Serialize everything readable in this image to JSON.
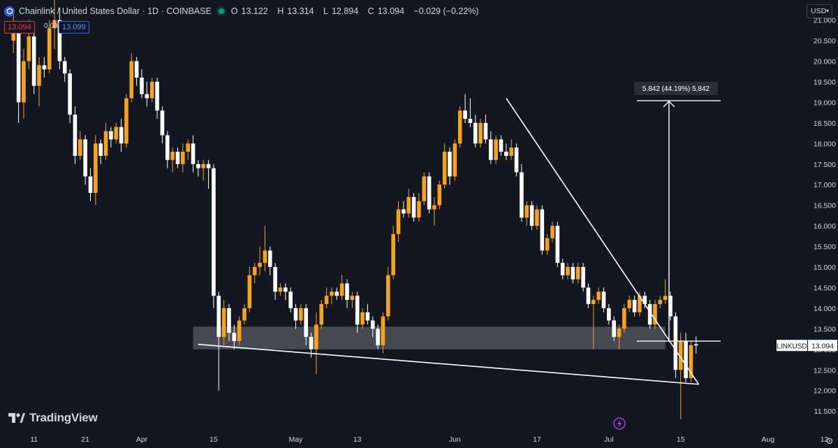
{
  "header": {
    "symbol": "Chainlink / United States Dollar · 1D · COINBASE",
    "o_label": "O",
    "o": "13.122",
    "h_label": "H",
    "h": "13.314",
    "l_label": "L",
    "l": "12.894",
    "c_label": "C",
    "c": "13.094",
    "change": "−0.029 (−0.22%)"
  },
  "trade": {
    "sell": "13.094",
    "spread": "0.005",
    "buy": "13.099"
  },
  "currency": "USD",
  "brand": "TradingView",
  "colors": {
    "bg": "#131722",
    "up": "#f7a21b",
    "down": "#ffffff",
    "text": "#d1d4dc"
  },
  "chart_data": {
    "type": "candlestick",
    "symbol": "LINKUSD",
    "last_price": 13.094,
    "y_ticks": [
      11.5,
      12.0,
      12.5,
      13.0,
      13.5,
      14.0,
      14.5,
      15.0,
      15.5,
      16.0,
      16.5,
      17.0,
      17.5,
      18.0,
      18.5,
      19.0,
      19.5,
      20.0,
      20.5,
      21.0
    ],
    "y_tick_labels": [
      "11.500",
      "12.000",
      "12.500",
      "13.000",
      "13.500",
      "14.000",
      "14.500",
      "15.000",
      "15.500",
      "16.000",
      "16.500",
      "17.000",
      "17.500",
      "18.000",
      "18.500",
      "19.000",
      "19.500",
      "20.000",
      "20.500",
      "21.000"
    ],
    "x_ticks": [
      {
        "label": "11",
        "day": -21
      },
      {
        "label": "21",
        "day": -11
      },
      {
        "label": "Apr",
        "day": 0
      },
      {
        "label": "15",
        "day": 14
      },
      {
        "label": "May",
        "day": 30
      },
      {
        "label": "13",
        "day": 42
      },
      {
        "label": "Jun",
        "day": 61
      },
      {
        "label": "17",
        "day": 77
      },
      {
        "label": "Jul",
        "day": 91
      },
      {
        "label": "15",
        "day": 105
      },
      {
        "label": "Aug",
        "day": 122
      },
      {
        "label": "12",
        "day": 133
      }
    ],
    "candles": [
      [
        20.5,
        21.2,
        20.2,
        20.8
      ],
      [
        20.8,
        20.9,
        18.5,
        19.0
      ],
      [
        19.0,
        20.3,
        18.6,
        20.0
      ],
      [
        20.0,
        21.0,
        19.8,
        20.6
      ],
      [
        20.6,
        20.8,
        19.2,
        19.4
      ],
      [
        19.4,
        20.1,
        18.9,
        19.9
      ],
      [
        19.9,
        20.1,
        19.6,
        19.8
      ],
      [
        19.8,
        21.0,
        19.7,
        20.8
      ],
      [
        20.8,
        21.5,
        20.3,
        21.0
      ],
      [
        21.0,
        21.3,
        19.8,
        20.0
      ],
      [
        20.0,
        20.1,
        19.5,
        19.7
      ],
      [
        19.7,
        19.8,
        18.5,
        18.7
      ],
      [
        18.7,
        18.9,
        17.5,
        17.7
      ],
      [
        17.7,
        18.3,
        17.6,
        18.1
      ],
      [
        18.1,
        18.2,
        17.0,
        17.2
      ],
      [
        17.2,
        17.4,
        16.6,
        16.8
      ],
      [
        16.8,
        18.2,
        16.5,
        18.0
      ],
      [
        18.0,
        18.1,
        17.5,
        17.7
      ],
      [
        17.7,
        18.5,
        17.6,
        18.3
      ],
      [
        18.3,
        18.4,
        17.9,
        18.1
      ],
      [
        18.1,
        18.5,
        18.0,
        18.4
      ],
      [
        18.4,
        18.6,
        17.8,
        18.0
      ],
      [
        18.0,
        19.2,
        17.9,
        19.1
      ],
      [
        19.1,
        20.2,
        19.0,
        20.0
      ],
      [
        20.0,
        20.1,
        19.4,
        19.6
      ],
      [
        19.6,
        19.8,
        19.1,
        19.2
      ],
      [
        19.2,
        19.5,
        18.9,
        19.1
      ],
      [
        19.1,
        19.6,
        19.0,
        19.5
      ],
      [
        19.5,
        19.6,
        18.6,
        18.8
      ],
      [
        18.8,
        18.9,
        18.0,
        18.2
      ],
      [
        18.2,
        18.3,
        17.4,
        17.6
      ],
      [
        17.6,
        17.9,
        17.3,
        17.8
      ],
      [
        17.8,
        17.9,
        17.4,
        17.5
      ],
      [
        17.5,
        18.0,
        17.3,
        17.8
      ],
      [
        17.8,
        18.1,
        17.6,
        18.0
      ],
      [
        18.0,
        18.2,
        17.3,
        17.5
      ],
      [
        17.5,
        17.6,
        17.2,
        17.4
      ],
      [
        17.4,
        17.6,
        17.1,
        17.5
      ],
      [
        17.5,
        17.6,
        16.9,
        17.4
      ],
      [
        17.4,
        17.5,
        14.0,
        14.3
      ],
      [
        14.3,
        14.4,
        12.0,
        13.3
      ],
      [
        13.3,
        14.2,
        13.1,
        14.0
      ],
      [
        14.0,
        14.1,
        13.2,
        13.4
      ],
      [
        13.4,
        13.6,
        13.0,
        13.2
      ],
      [
        13.2,
        13.8,
        13.1,
        13.7
      ],
      [
        13.7,
        14.1,
        13.6,
        14.0
      ],
      [
        14.0,
        15.0,
        13.9,
        14.8
      ],
      [
        14.8,
        15.1,
        14.6,
        15.0
      ],
      [
        15.0,
        15.5,
        14.8,
        15.1
      ],
      [
        15.1,
        16.0,
        14.9,
        15.4
      ],
      [
        15.4,
        15.5,
        14.8,
        15.0
      ],
      [
        15.0,
        15.1,
        14.2,
        14.4
      ],
      [
        14.4,
        14.6,
        14.3,
        14.5
      ],
      [
        14.5,
        14.6,
        14.2,
        14.4
      ],
      [
        14.4,
        14.5,
        13.9,
        14.0
      ],
      [
        14.0,
        14.1,
        13.5,
        13.7
      ],
      [
        13.7,
        14.1,
        13.6,
        14.0
      ],
      [
        14.0,
        14.1,
        13.1,
        13.3
      ],
      [
        13.3,
        13.4,
        12.8,
        13.0
      ],
      [
        13.0,
        13.9,
        12.4,
        13.6
      ],
      [
        13.6,
        14.2,
        13.5,
        14.1
      ],
      [
        14.1,
        14.5,
        14.0,
        14.3
      ],
      [
        14.3,
        14.5,
        14.1,
        14.4
      ],
      [
        14.4,
        14.5,
        14.2,
        14.3
      ],
      [
        14.3,
        14.8,
        14.2,
        14.6
      ],
      [
        14.6,
        14.7,
        14.0,
        14.2
      ],
      [
        14.2,
        14.4,
        14.0,
        14.3
      ],
      [
        14.3,
        14.4,
        13.4,
        13.6
      ],
      [
        13.6,
        14.0,
        13.5,
        13.9
      ],
      [
        13.9,
        14.1,
        13.6,
        13.7
      ],
      [
        13.7,
        13.8,
        13.3,
        13.5
      ],
      [
        13.5,
        13.6,
        13.0,
        13.1
      ],
      [
        13.1,
        13.9,
        12.9,
        13.8
      ],
      [
        13.8,
        15.0,
        13.7,
        14.8
      ],
      [
        14.8,
        16.0,
        14.7,
        15.8
      ],
      [
        15.8,
        16.6,
        15.6,
        16.4
      ],
      [
        16.4,
        16.6,
        16.2,
        16.3
      ],
      [
        16.3,
        16.9,
        16.2,
        16.7
      ],
      [
        16.7,
        16.8,
        16.1,
        16.2
      ],
      [
        16.2,
        16.8,
        16.1,
        16.6
      ],
      [
        16.6,
        17.3,
        16.5,
        17.2
      ],
      [
        17.2,
        17.3,
        16.3,
        16.4
      ],
      [
        16.4,
        16.7,
        16.0,
        16.5
      ],
      [
        16.5,
        17.1,
        16.4,
        17.0
      ],
      [
        17.0,
        18.0,
        16.9,
        17.8
      ],
      [
        17.8,
        17.9,
        17.0,
        17.2
      ],
      [
        17.2,
        18.1,
        17.1,
        18.0
      ],
      [
        18.0,
        18.9,
        17.9,
        18.8
      ],
      [
        18.8,
        19.2,
        18.5,
        18.6
      ],
      [
        18.6,
        19.1,
        18.4,
        18.5
      ],
      [
        18.5,
        18.7,
        17.9,
        18.0
      ],
      [
        18.0,
        18.6,
        17.9,
        18.5
      ],
      [
        18.5,
        18.7,
        18.0,
        18.1
      ],
      [
        18.1,
        18.3,
        17.5,
        17.6
      ],
      [
        17.6,
        18.2,
        17.5,
        18.1
      ],
      [
        18.1,
        18.2,
        17.7,
        17.8
      ],
      [
        17.8,
        18.0,
        17.6,
        17.7
      ],
      [
        17.7,
        18.1,
        17.6,
        17.9
      ],
      [
        17.9,
        18.0,
        17.2,
        17.3
      ],
      [
        17.3,
        17.5,
        16.1,
        16.2
      ],
      [
        16.2,
        16.6,
        16.0,
        16.5
      ],
      [
        16.5,
        16.6,
        15.9,
        16.0
      ],
      [
        16.0,
        16.5,
        15.9,
        16.4
      ],
      [
        16.4,
        16.5,
        15.3,
        15.4
      ],
      [
        15.4,
        15.8,
        15.3,
        15.7
      ],
      [
        15.7,
        16.1,
        15.6,
        16.0
      ],
      [
        16.0,
        16.1,
        15.0,
        15.1
      ],
      [
        15.1,
        15.2,
        14.7,
        14.8
      ],
      [
        14.8,
        15.1,
        14.7,
        15.0
      ],
      [
        15.0,
        15.1,
        14.6,
        14.7
      ],
      [
        14.7,
        15.1,
        14.6,
        15.0
      ],
      [
        15.0,
        15.1,
        14.4,
        14.5
      ],
      [
        14.5,
        14.6,
        14.0,
        14.1
      ],
      [
        14.1,
        14.3,
        13.0,
        14.2
      ],
      [
        14.2,
        14.5,
        14.1,
        14.4
      ],
      [
        14.4,
        14.5,
        13.9,
        14.0
      ],
      [
        14.0,
        14.1,
        13.6,
        13.7
      ],
      [
        13.7,
        13.8,
        13.2,
        13.3
      ],
      [
        13.3,
        13.6,
        13.0,
        13.5
      ],
      [
        13.5,
        14.1,
        13.4,
        14.0
      ],
      [
        14.0,
        14.3,
        13.9,
        14.2
      ],
      [
        14.2,
        14.3,
        13.8,
        13.9
      ],
      [
        13.9,
        14.4,
        13.8,
        14.3
      ],
      [
        14.3,
        14.4,
        14.0,
        14.1
      ],
      [
        14.1,
        14.2,
        13.5,
        13.6
      ],
      [
        13.6,
        14.2,
        13.5,
        14.1
      ],
      [
        14.1,
        14.3,
        14.0,
        14.2
      ],
      [
        14.2,
        14.7,
        14.1,
        14.3
      ],
      [
        14.3,
        14.4,
        13.7,
        13.8
      ],
      [
        13.8,
        13.9,
        12.3,
        12.5
      ],
      [
        12.5,
        13.4,
        11.3,
        13.2
      ],
      [
        13.2,
        13.4,
        12.2,
        12.3
      ],
      [
        12.3,
        13.2,
        12.2,
        13.1
      ],
      [
        13.122,
        13.314,
        12.894,
        13.094
      ]
    ],
    "support_zone": {
      "low": 13.0,
      "high": 13.55
    },
    "triangle_upper": [
      {
        "day": 71.0,
        "price": 19.1
      },
      {
        "day": 108.5,
        "price": 12.15
      }
    ],
    "triangle_lower": [
      {
        "day": 11.0,
        "price": 13.12
      },
      {
        "day": 108.5,
        "price": 12.15
      }
    ],
    "measure": {
      "from": 13.2,
      "to": 19.04,
      "label": "5.842 (44.19%) 5,842"
    },
    "x_axis_day_of_first_candle": -25
  }
}
